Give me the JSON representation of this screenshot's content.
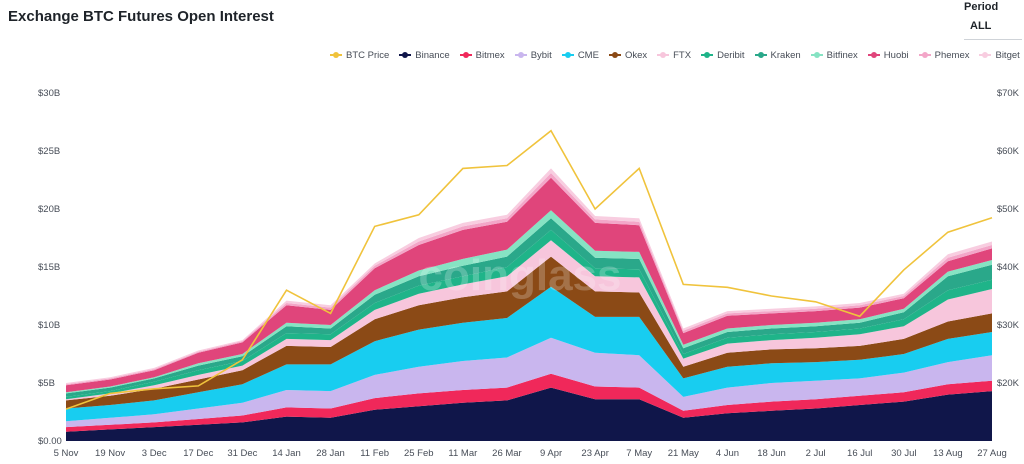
{
  "title": "Exchange BTC Futures Open Interest",
  "period": {
    "label": "Period",
    "value": "ALL"
  },
  "colors": {
    "BTC Price": "#f0c33c",
    "Binance": "#10164a",
    "Bitmex": "#f0285a",
    "Bybit": "#c9b6ee",
    "CME": "#18cdf0",
    "Okex": "#8b4a16",
    "FTX": "#f7c6dc",
    "Deribit": "#1fb489",
    "Kraken": "#2aa88a",
    "Bitfinex": "#86e3c3",
    "Huobi": "#e0457b",
    "Phemex": "#f3a6c8",
    "Bitget": "#f8cde0"
  },
  "chart_data": {
    "type": "area",
    "stacked": true,
    "xlabels": [
      "5 Nov",
      "19 Nov",
      "3 Dec",
      "17 Dec",
      "31 Dec",
      "14 Jan",
      "28 Jan",
      "11 Feb",
      "25 Feb",
      "11 Mar",
      "26 Mar",
      "9 Apr",
      "23 Apr",
      "7 May",
      "21 May",
      "4 Jun",
      "18 Jun",
      "2 Jul",
      "16 Jul",
      "30 Jul",
      "13 Aug",
      "27 Aug"
    ],
    "ylim_left": [
      0,
      30
    ],
    "ylim_right": [
      10000,
      70000
    ],
    "yticks_left": [
      "$0.00",
      "$5B",
      "$10B",
      "$15B",
      "$20B",
      "$25B",
      "$30B"
    ],
    "yticks_right": [
      "$20K",
      "$30K",
      "$40K",
      "$50K",
      "$60K",
      "$70K"
    ],
    "legend": [
      "BTC Price",
      "Binance",
      "Bitmex",
      "Bybit",
      "CME",
      "Okex",
      "FTX",
      "Deribit",
      "Kraken",
      "Bitfinex",
      "Huobi",
      "Phemex",
      "Bitget"
    ],
    "series": [
      {
        "name": "Binance",
        "values": [
          0.8,
          1.0,
          1.2,
          1.4,
          1.6,
          2.1,
          2.0,
          2.7,
          3.0,
          3.3,
          3.5,
          4.6,
          3.6,
          3.6,
          2.0,
          2.4,
          2.6,
          2.8,
          3.1,
          3.4,
          4.0,
          4.3
        ]
      },
      {
        "name": "Bitmex",
        "values": [
          0.4,
          0.4,
          0.4,
          0.5,
          0.6,
          0.8,
          0.8,
          1.0,
          1.1,
          1.1,
          1.1,
          1.2,
          1.1,
          1.0,
          0.6,
          0.7,
          0.8,
          0.8,
          0.8,
          0.8,
          0.9,
          0.9
        ]
      },
      {
        "name": "Bybit",
        "values": [
          0.5,
          0.6,
          0.7,
          0.9,
          1.1,
          1.5,
          1.5,
          2.0,
          2.3,
          2.5,
          2.6,
          3.1,
          2.9,
          2.8,
          1.2,
          1.5,
          1.6,
          1.6,
          1.5,
          1.7,
          1.9,
          2.2
        ]
      },
      {
        "name": "CME",
        "values": [
          1.1,
          1.1,
          1.2,
          1.4,
          1.6,
          2.2,
          2.3,
          2.9,
          3.2,
          3.3,
          3.4,
          4.4,
          3.1,
          3.3,
          1.6,
          1.8,
          1.7,
          1.6,
          1.6,
          1.6,
          2.0,
          2.0
        ]
      },
      {
        "name": "Okex",
        "values": [
          0.7,
          0.8,
          1.0,
          1.1,
          1.2,
          1.6,
          1.5,
          1.9,
          2.1,
          2.2,
          2.3,
          2.6,
          2.2,
          2.1,
          1.0,
          1.2,
          1.2,
          1.2,
          1.2,
          1.3,
          1.5,
          1.6
        ]
      },
      {
        "name": "FTX",
        "values": [
          0.1,
          0.2,
          0.3,
          0.4,
          0.4,
          0.6,
          0.6,
          0.8,
          1.0,
          1.1,
          1.3,
          1.4,
          1.3,
          1.3,
          0.7,
          0.8,
          0.8,
          0.9,
          1.0,
          1.1,
          1.9,
          2.1
        ]
      },
      {
        "name": "Deribit",
        "values": [
          0.2,
          0.2,
          0.3,
          0.4,
          0.4,
          0.5,
          0.5,
          0.6,
          0.7,
          0.7,
          0.8,
          0.9,
          0.7,
          0.7,
          0.4,
          0.5,
          0.5,
          0.5,
          0.5,
          0.6,
          0.8,
          0.8
        ]
      },
      {
        "name": "Kraken",
        "values": [
          0.3,
          0.3,
          0.3,
          0.4,
          0.4,
          0.6,
          0.5,
          0.7,
          0.8,
          0.9,
          0.9,
          1.0,
          0.9,
          0.9,
          0.5,
          0.5,
          0.5,
          0.5,
          0.5,
          0.6,
          1.2,
          1.3
        ]
      },
      {
        "name": "Bitfinex",
        "values": [
          0.1,
          0.1,
          0.1,
          0.2,
          0.2,
          0.3,
          0.3,
          0.4,
          0.5,
          0.6,
          0.6,
          0.7,
          0.6,
          0.6,
          0.3,
          0.3,
          0.3,
          0.3,
          0.3,
          0.3,
          0.4,
          0.4
        ]
      },
      {
        "name": "Huobi",
        "values": [
          0.6,
          0.6,
          0.6,
          0.9,
          1.0,
          1.5,
          1.3,
          1.9,
          2.2,
          2.5,
          2.4,
          2.8,
          2.4,
          2.3,
          1.0,
          1.1,
          1.0,
          1.0,
          1.0,
          0.9,
          0.9,
          1.0
        ]
      },
      {
        "name": "Phemex",
        "values": [
          0.1,
          0.1,
          0.1,
          0.1,
          0.1,
          0.2,
          0.2,
          0.2,
          0.3,
          0.3,
          0.3,
          0.4,
          0.3,
          0.3,
          0.2,
          0.2,
          0.2,
          0.2,
          0.2,
          0.2,
          0.3,
          0.3
        ]
      },
      {
        "name": "Bitget",
        "values": [
          0.1,
          0.1,
          0.1,
          0.1,
          0.1,
          0.2,
          0.2,
          0.2,
          0.3,
          0.3,
          0.3,
          0.4,
          0.3,
          0.3,
          0.2,
          0.2,
          0.2,
          0.2,
          0.2,
          0.2,
          0.3,
          0.3
        ]
      }
    ],
    "price": {
      "name": "BTC Price",
      "axis": "right",
      "values": [
        15500,
        18200,
        19000,
        19500,
        24000,
        36000,
        32000,
        47000,
        49000,
        57000,
        57500,
        63500,
        50000,
        57000,
        37000,
        36500,
        35000,
        34000,
        31500,
        39500,
        46000,
        48500
      ]
    },
    "watermark": "coinglass"
  }
}
